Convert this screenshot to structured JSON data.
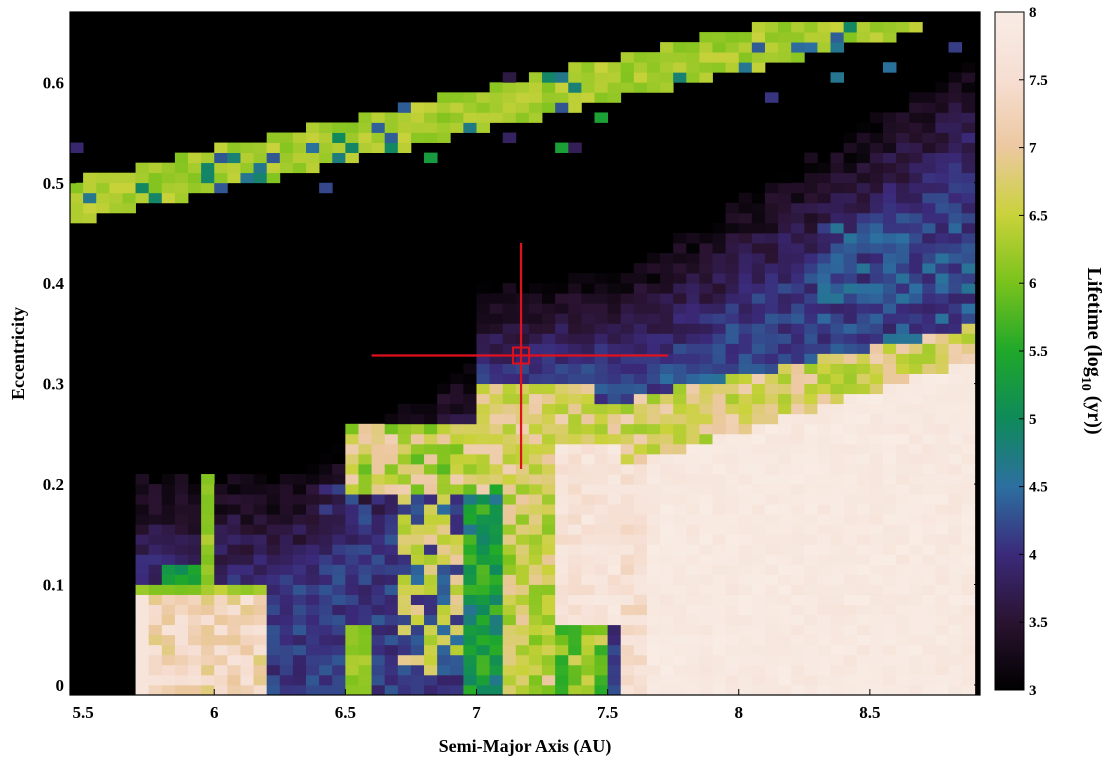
{
  "chart_data": {
    "type": "heatmap",
    "title": "",
    "xlabel": "Semi-Major Axis (AU)",
    "ylabel": "Eccentricity",
    "xlim": [
      5.45,
      8.92
    ],
    "ylim": [
      -0.01,
      0.67
    ],
    "xticks": [
      "5.5",
      "6",
      "6.5",
      "7",
      "7.5",
      "8",
      "8.5"
    ],
    "yticks": [
      "0",
      "0.1",
      "0.2",
      "0.3",
      "0.4",
      "0.5",
      "0.6"
    ],
    "grid": false,
    "colorbar": {
      "label": "Lifetime (log10 (yr))",
      "label_main": "Lifetime (log",
      "label_sub": "10",
      "label_end": " (yr))",
      "range": [
        3,
        8
      ],
      "ticks": [
        "3",
        "3.5",
        "4",
        "4.5",
        "5",
        "5.5",
        "6",
        "6.5",
        "7",
        "7.5",
        "8"
      ],
      "colormap": [
        "#000000",
        "#2a1330",
        "#3b2a7a",
        "#2c6fa0",
        "#0f8a5a",
        "#1fa82a",
        "#79c21c",
        "#c9d23a",
        "#ecc8a0",
        "#f6ded2",
        "#f8ece5"
      ]
    },
    "grid_shape": {
      "a_min": 5.45,
      "a_step": 0.05,
      "e_min": -0.01,
      "e_step": 0.01
    },
    "regions": {
      "stable_zone": "a > 7.5, e < 0.32, lifetime ≈ 8",
      "resonance_bands": "green near-vertical bands at a ≈ 5.8, 6.0, 6.5-7.0, 7.1-7.3",
      "upper_arc": "green/blue arc from (5.5, 0.47) to (8.7, 0.66), lifetime ≈ 6",
      "unstable": "black region, lifetime ≈ 3"
    },
    "marker": {
      "label": "crosshair",
      "x": 7.17,
      "y": 0.328,
      "x_extent": [
        6.6,
        7.73
      ],
      "y_extent": [
        0.215,
        0.44
      ],
      "color": "#e0101c"
    }
  }
}
